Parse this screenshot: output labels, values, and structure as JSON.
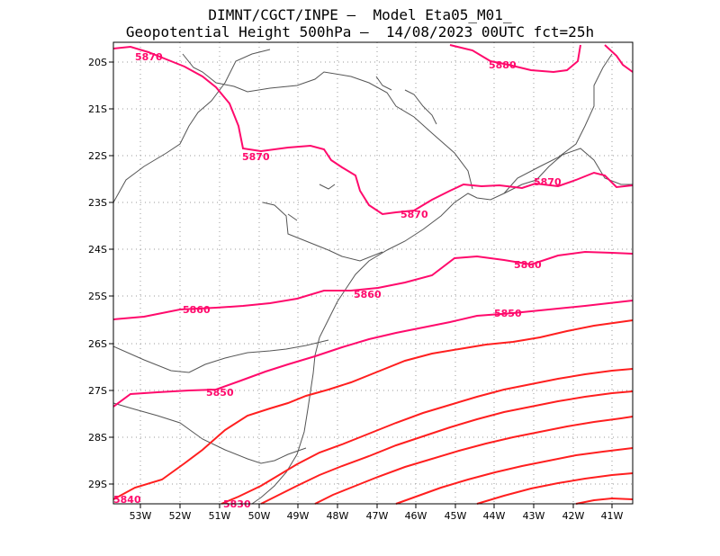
{
  "header": {
    "line1": "DIMNT/CGCT/INPE –  Model Eta05_M01_",
    "line2": "Geopotential Height 500hPa –  14/08/2023 00UTC fct=25h"
  },
  "axes": {
    "lat_labels": [
      "20S",
      "21S",
      "22S",
      "23S",
      "24S",
      "25S",
      "26S",
      "27S",
      "28S",
      "29S"
    ],
    "lon_labels": [
      "53W",
      "52W",
      "51W",
      "50W",
      "49W",
      "48W",
      "47W",
      "46W",
      "45W",
      "44W",
      "43W",
      "42W",
      "41W"
    ]
  },
  "contours": {
    "colors": {
      "pink": "#ff0a6c",
      "red": "#ff1f1f",
      "map": "#555555"
    },
    "labels": [
      "5870",
      "5880",
      "5870",
      "5870",
      "5870",
      "5860",
      "5860",
      "5860",
      "5850",
      "5850",
      "5840",
      "5830"
    ]
  }
}
